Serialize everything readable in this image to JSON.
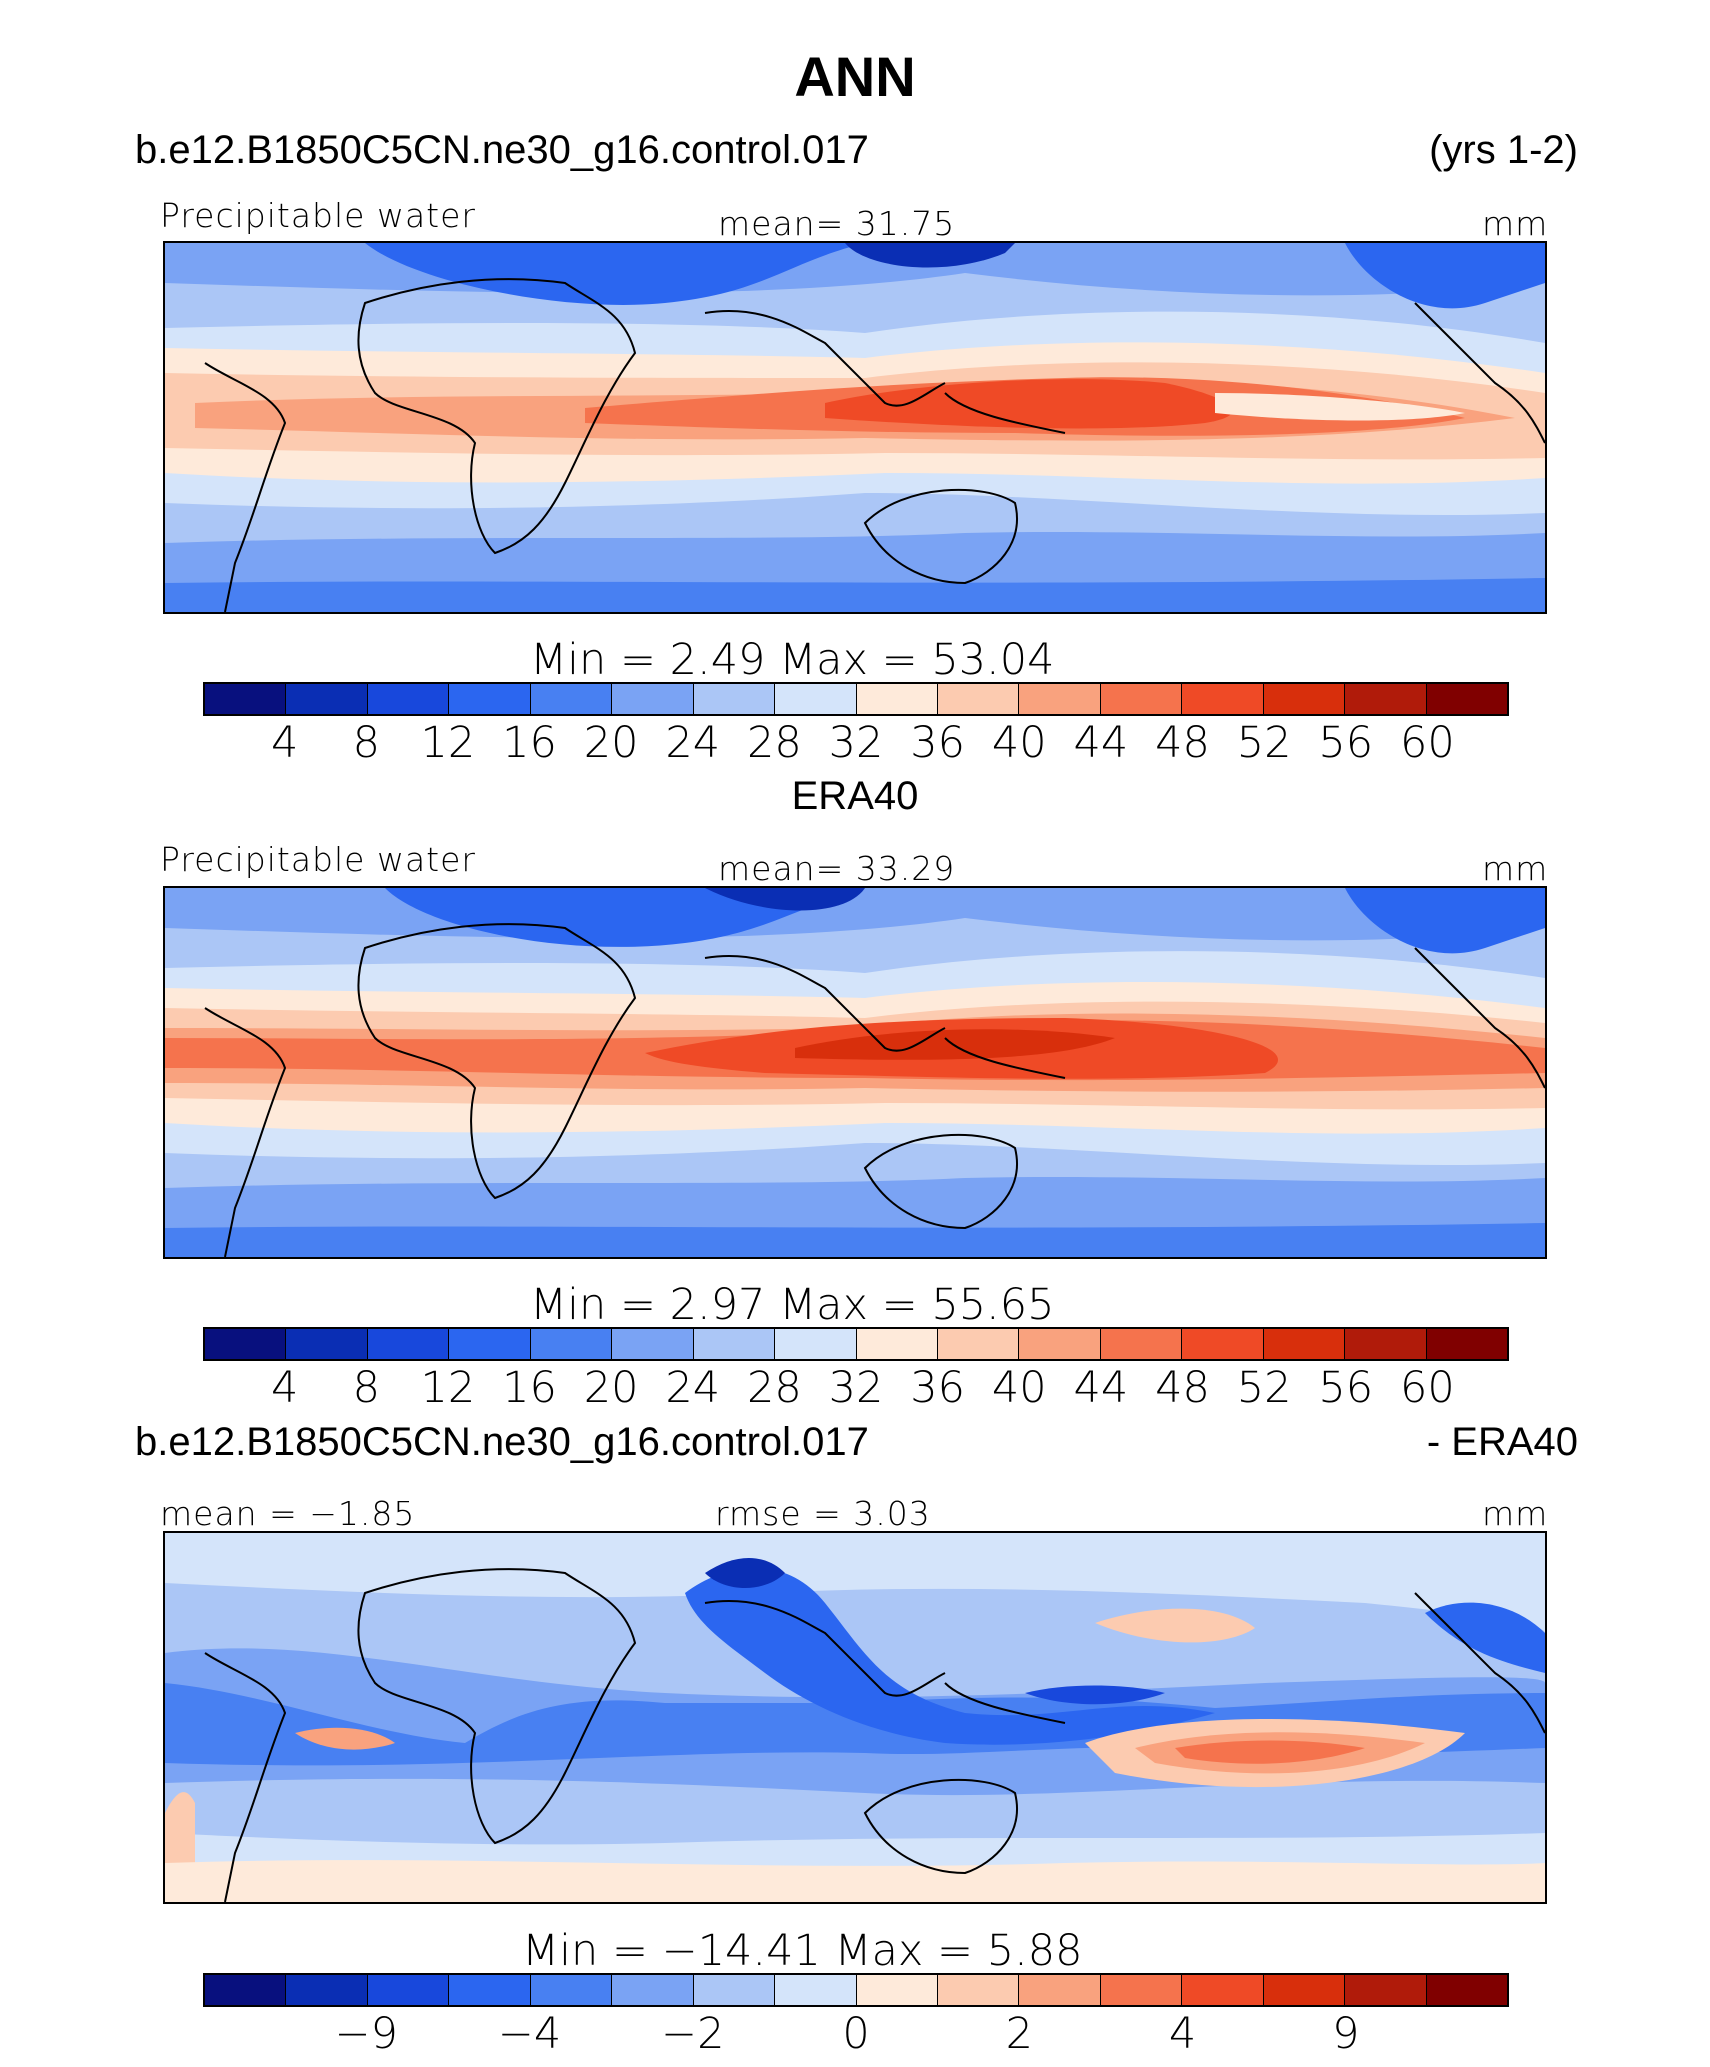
{
  "title": "ANN",
  "colors": [
    "#08107e",
    "#0a2eb4",
    "#1848dc",
    "#2b66f0",
    "#4880f2",
    "#7aa3f4",
    "#abc6f6",
    "#d4e4fa",
    "#feeada",
    "#fccbb0",
    "#f9a27e",
    "#f5734d",
    "#ef4a26",
    "#d82f0c",
    "#b01b0a",
    "#800000"
  ],
  "panels": [
    {
      "id": "model",
      "header_left": "b.e12.B1850C5CN.ne30_g16.control.017",
      "header_right": "(yrs 1-2)",
      "top_left": "Precipitable  water",
      "top_center": "mean=   31.75",
      "top_right": "mm",
      "minmax": "Min  =    2.49  Max  =   53.04",
      "ticks": [
        "4",
        "8",
        "12",
        "16",
        "20",
        "24",
        "28",
        "32",
        "36",
        "40",
        "44",
        "48",
        "52",
        "56",
        "60"
      ]
    },
    {
      "id": "obs",
      "header_center": "ERA40",
      "top_left": "Precipitable  water",
      "top_center": "mean=   33.29",
      "top_right": "mm",
      "minmax": "Min  =    2.97  Max  =   55.65",
      "ticks": [
        "4",
        "8",
        "12",
        "16",
        "20",
        "24",
        "28",
        "32",
        "36",
        "40",
        "44",
        "48",
        "52",
        "56",
        "60"
      ]
    },
    {
      "id": "diff",
      "header_left": "b.e12.B1850C5CN.ne30_g16.control.017",
      "header_right": "- ERA40",
      "top_left": "mean =  −1.85",
      "top_center": "rmse  =     3.03",
      "top_right": "mm",
      "minmax": "Min  = −14.41  Max  =    5.88",
      "ticks": [
        "−9",
        "−4",
        "−2",
        "0",
        "2",
        "4",
        "9"
      ]
    }
  ],
  "chart_data": [
    {
      "type": "heatmap",
      "title": "ANN",
      "subtitle": "b.e12.B1850C5CN.ne30_g16.control.017 (yrs 1-2)",
      "variable": "Precipitable water",
      "units": "mm",
      "mean": 31.75,
      "min": 2.49,
      "max": 53.04,
      "contour_levels": [
        4,
        8,
        12,
        16,
        20,
        24,
        28,
        32,
        36,
        40,
        44,
        48,
        52,
        56,
        60
      ]
    },
    {
      "type": "heatmap",
      "title": "ERA40",
      "variable": "Precipitable water",
      "units": "mm",
      "mean": 33.29,
      "min": 2.97,
      "max": 55.65,
      "contour_levels": [
        4,
        8,
        12,
        16,
        20,
        24,
        28,
        32,
        36,
        40,
        44,
        48,
        52,
        56,
        60
      ]
    },
    {
      "type": "heatmap",
      "title": "b.e12.B1850C5CN.ne30_g16.control.017 - ERA40",
      "units": "mm",
      "mean": -1.85,
      "rmse": 3.03,
      "min": -14.41,
      "max": 5.88,
      "contour_levels": [
        -9,
        -4,
        -2,
        0,
        2,
        4,
        9
      ]
    }
  ]
}
